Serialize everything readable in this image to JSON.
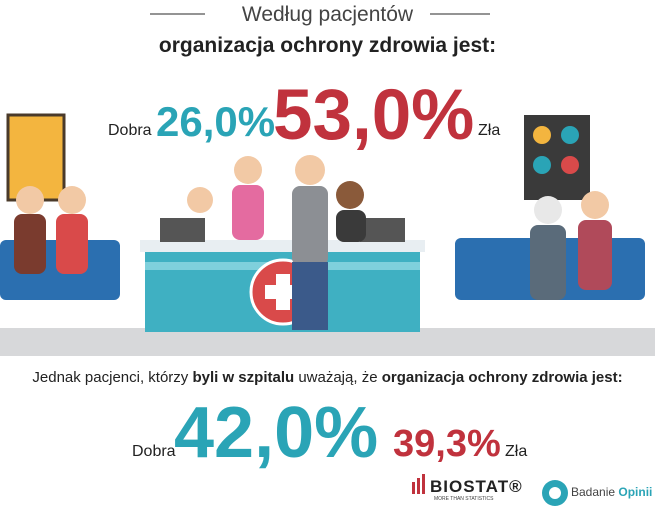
{
  "header": {
    "title": "Według pacjentów",
    "subtitle": "organizacja ochrony zdrowia jest:"
  },
  "first_result": {
    "good_label": "Dobra",
    "good_value": "26,0%",
    "bad_value": "53,0%",
    "bad_label": "Zła"
  },
  "second_intro": [
    "Jednak pacjenci, którzy ",
    "byli w szpitalu",
    " uważają, że ",
    "organizacja ochrony zdrowia jest:"
  ],
  "second_result": {
    "good_label": "Dobra",
    "good_value": "42,0%",
    "bad_value": "39,3%",
    "bad_label": "Zła"
  },
  "logos": {
    "biostat": "BIOSTAT®",
    "biostat_tagline": "MORE THAN STATISTICS",
    "badanie": "Badanie",
    "opinii": "Opinii"
  }
}
